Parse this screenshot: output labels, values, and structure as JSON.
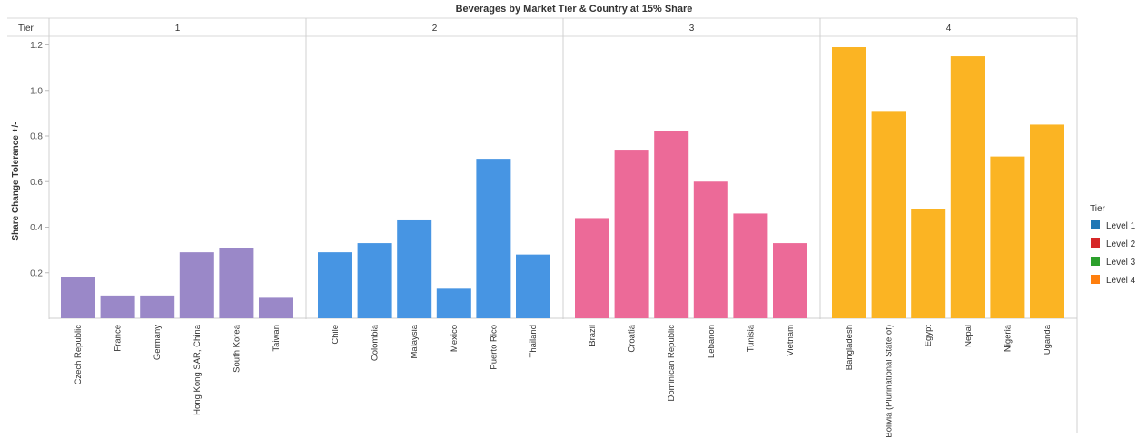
{
  "chart_data": {
    "type": "bar",
    "title": "Beverages by Market Tier & Country at 15% Share",
    "ylabel": "Share Change Tolerance +/-",
    "xlabel": "",
    "facet_header_label": "Tier",
    "ylim": [
      0,
      1.2
    ],
    "yticks": [
      0.2,
      0.4,
      0.6,
      0.8,
      1.0,
      1.2
    ],
    "ytick_labels": [
      "0.2",
      "0.4",
      "0.6",
      "0.8",
      "1.0",
      "1.2"
    ],
    "grid": false,
    "legend": {
      "title": "Tier",
      "placement": "right",
      "items": [
        {
          "label": "Level 1",
          "color": "#1f77b4"
        },
        {
          "label": "Level 2",
          "color": "#d62728"
        },
        {
          "label": "Level 3",
          "color": "#2ca02c"
        },
        {
          "label": "Level 4",
          "color": "#ff7f0e"
        }
      ]
    },
    "panels": [
      {
        "tier": "1",
        "color": "#9a88c8",
        "categories": [
          "Czech Republic",
          "France",
          "Germany",
          "Hong Kong SAR, China",
          "South Korea",
          "Taiwan"
        ],
        "values": [
          0.18,
          0.1,
          0.1,
          0.29,
          0.31,
          0.09
        ]
      },
      {
        "tier": "2",
        "color": "#4795e3",
        "categories": [
          "Chile",
          "Colombia",
          "Malaysia",
          "Mexico",
          "Puerto Rico",
          "Thailand"
        ],
        "values": [
          0.29,
          0.33,
          0.43,
          0.13,
          0.7,
          0.28
        ]
      },
      {
        "tier": "3",
        "color": "#ec6a98",
        "categories": [
          "Brazil",
          "Croatia",
          "Dominican Republic",
          "Lebanon",
          "Tunisia",
          "Vietnam"
        ],
        "values": [
          0.44,
          0.74,
          0.82,
          0.6,
          0.46,
          0.33
        ]
      },
      {
        "tier": "4",
        "color": "#fbb423",
        "categories": [
          "Bangladesh",
          "Bolivia (Plurinational State of)",
          "Egypt",
          "Nepal",
          "Nigeria",
          "Uganda"
        ],
        "values": [
          1.19,
          0.91,
          0.48,
          1.15,
          0.71,
          0.85
        ]
      }
    ]
  }
}
